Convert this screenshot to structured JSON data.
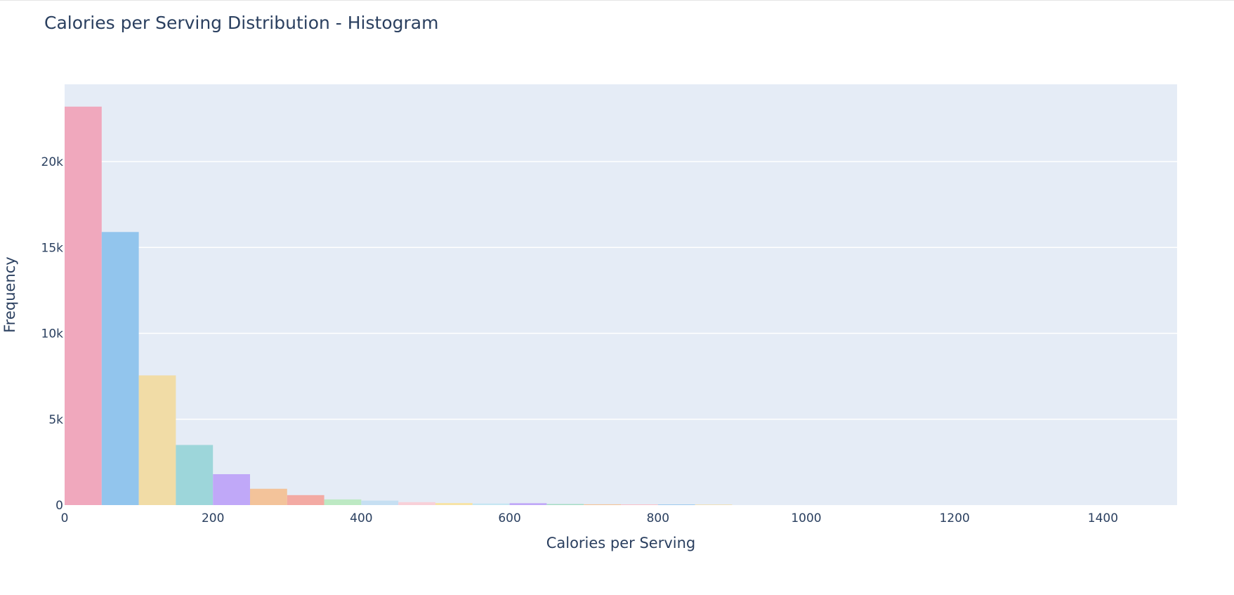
{
  "chart_data": {
    "type": "bar",
    "title": "Calories per Serving Distribution - Histogram",
    "xlabel": "Calories per Serving",
    "ylabel": "Frequency",
    "xlim": [
      0,
      1500
    ],
    "ylim": [
      0,
      24500
    ],
    "bin_width": 50,
    "x_ticks": [
      0,
      200,
      400,
      600,
      800,
      1000,
      1200,
      1400
    ],
    "x_tick_labels": [
      "0",
      "200",
      "400",
      "600",
      "800",
      "1000",
      "1200",
      "1400"
    ],
    "y_ticks": [
      0,
      5000,
      10000,
      15000,
      20000
    ],
    "y_tick_labels": [
      "0",
      "5k",
      "10k",
      "15k",
      "20k"
    ],
    "grid": true,
    "plot_background": "#e5ecf6",
    "bins": [
      {
        "x0": 0,
        "x1": 50,
        "value": 23200,
        "color": "#f0a8bd"
      },
      {
        "x0": 50,
        "x1": 100,
        "value": 15900,
        "color": "#92c5ed"
      },
      {
        "x0": 100,
        "x1": 150,
        "value": 7550,
        "color": "#f1dca6"
      },
      {
        "x0": 150,
        "x1": 200,
        "value": 3500,
        "color": "#9dd6da"
      },
      {
        "x0": 200,
        "x1": 250,
        "value": 1800,
        "color": "#c0a8f8"
      },
      {
        "x0": 250,
        "x1": 300,
        "value": 950,
        "color": "#f3c39a"
      },
      {
        "x0": 300,
        "x1": 350,
        "value": 580,
        "color": "#f3aaa3"
      },
      {
        "x0": 350,
        "x1": 400,
        "value": 330,
        "color": "#bde9c3"
      },
      {
        "x0": 400,
        "x1": 450,
        "value": 260,
        "color": "#c6dff2"
      },
      {
        "x0": 450,
        "x1": 500,
        "value": 170,
        "color": "#f8d0d8"
      },
      {
        "x0": 500,
        "x1": 550,
        "value": 120,
        "color": "#f7e3a6"
      },
      {
        "x0": 550,
        "x1": 600,
        "value": 90,
        "color": "#c6e6f2"
      },
      {
        "x0": 600,
        "x1": 650,
        "value": 110,
        "color": "#c0a8f8"
      },
      {
        "x0": 650,
        "x1": 700,
        "value": 60,
        "color": "#a5dcc4"
      },
      {
        "x0": 700,
        "x1": 750,
        "value": 45,
        "color": "#f3c39a"
      },
      {
        "x0": 750,
        "x1": 800,
        "value": 40,
        "color": "#f8c0c8"
      },
      {
        "x0": 800,
        "x1": 850,
        "value": 35,
        "color": "#92c5ed"
      },
      {
        "x0": 850,
        "x1": 900,
        "value": 30,
        "color": "#f1dca6"
      }
    ]
  }
}
